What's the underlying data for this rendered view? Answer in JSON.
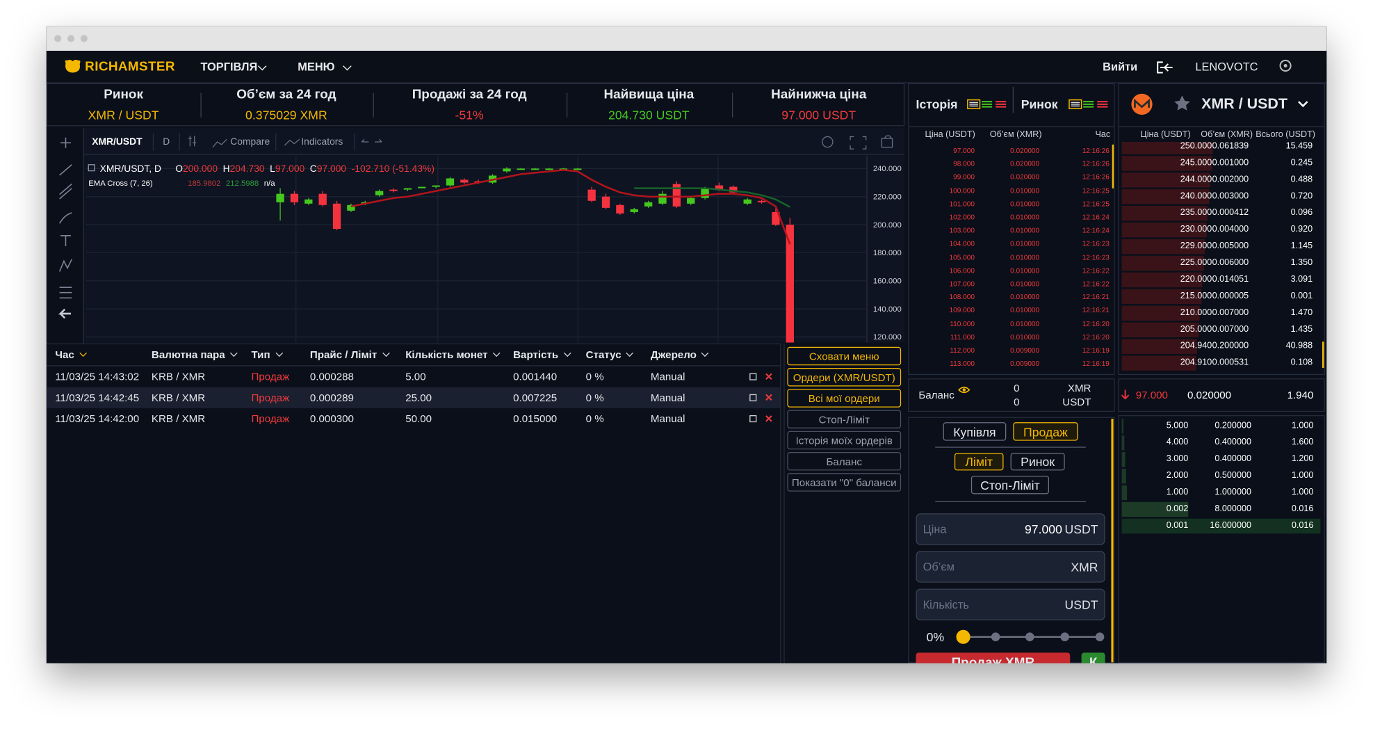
{
  "nav": {
    "logo": "RICHAMSTER",
    "menu": [
      "ТОРГІВЛЯ",
      "МЕНЮ"
    ],
    "logout": "Вийти",
    "user": "LENOVOTC"
  },
  "ticker": [
    {
      "label": "Ринок",
      "value": "XMR / USDT"
    },
    {
      "label": "Об’єм за 24 год",
      "value": "0.375029 XMR"
    },
    {
      "label": "Продажі за 24 год",
      "value": "-51%"
    },
    {
      "label": "Найвища ціна",
      "value": "204.730 USDT"
    },
    {
      "label": "Найнижча ціна",
      "value": "97.000 USDT"
    }
  ],
  "chart_toolbar": {
    "symbol": "XMR/USDT",
    "interval": "D",
    "compare": "Compare",
    "indicators": "Indicators"
  },
  "chart_data": {
    "type": "candlestick",
    "legend": {
      "symbol": "XMR/USDT, D",
      "ohlc": [
        {
          "label": "O",
          "value": "200.000"
        },
        {
          "label": "H",
          "value": "204.730"
        },
        {
          "label": "L",
          "value": "97.000"
        },
        {
          "label": "C",
          "value": "97.000"
        }
      ],
      "change": "-102.710 (-51.43%)",
      "indicator": "EMA Cross (7, 26)",
      "indicator_values": [
        "185.9802",
        "212.5988",
        "n/a"
      ]
    },
    "up_color": "#45c81e",
    "down_color": "#f5333f",
    "ylim": [
      116,
      249
    ],
    "yticks": [
      {
        "value": 240,
        "label": "240.000"
      },
      {
        "value": 220,
        "label": "220.000"
      },
      {
        "value": 200,
        "label": "200.000"
      },
      {
        "value": 180,
        "label": "180.000"
      },
      {
        "value": 160,
        "label": "160.000"
      },
      {
        "value": 140,
        "label": "140.000"
      },
      {
        "value": 120,
        "label": "120.000"
      }
    ],
    "candles": [
      {
        "open": 216,
        "high": 226,
        "low": 203,
        "close": 222
      },
      {
        "open": 222,
        "high": 224,
        "low": 214,
        "close": 216
      },
      {
        "open": 215,
        "high": 219,
        "low": 214,
        "close": 218
      },
      {
        "open": 222,
        "high": 224,
        "low": 213,
        "close": 214
      },
      {
        "open": 215,
        "high": 217,
        "low": 196,
        "close": 197
      },
      {
        "open": 210,
        "high": 215,
        "low": 209,
        "close": 214
      },
      {
        "open": 215,
        "high": 217,
        "low": 214,
        "close": 216
      },
      {
        "open": 221,
        "high": 225,
        "low": 220,
        "close": 224
      },
      {
        "open": 225,
        "high": 226,
        "low": 223,
        "close": 224
      },
      {
        "open": 225,
        "high": 226,
        "low": 224,
        "close": 226
      },
      {
        "open": 226,
        "high": 227,
        "low": 226,
        "close": 227
      },
      {
        "open": 227,
        "high": 228,
        "low": 226,
        "close": 228
      },
      {
        "open": 228,
        "high": 234,
        "low": 227,
        "close": 233
      },
      {
        "open": 232,
        "high": 233,
        "low": 229,
        "close": 230
      },
      {
        "open": 231,
        "high": 232,
        "low": 229,
        "close": 230
      },
      {
        "open": 230,
        "high": 236,
        "low": 229,
        "close": 235
      },
      {
        "open": 238,
        "high": 241,
        "low": 237,
        "close": 240
      },
      {
        "open": 239.5,
        "high": 240.5,
        "low": 239,
        "close": 240
      },
      {
        "open": 239.5,
        "high": 240.5,
        "low": 239,
        "close": 240
      },
      {
        "open": 239.5,
        "high": 240.5,
        "low": 239,
        "close": 240
      },
      {
        "open": 239.5,
        "high": 240.5,
        "low": 239,
        "close": 240
      },
      {
        "open": 239.5,
        "high": 240.5,
        "low": 239,
        "close": 240
      },
      {
        "open": 225,
        "high": 227,
        "low": 216,
        "close": 217
      },
      {
        "open": 220,
        "high": 222,
        "low": 211,
        "close": 212
      },
      {
        "open": 214,
        "high": 215,
        "low": 207,
        "close": 208
      },
      {
        "open": 209,
        "high": 212,
        "low": 208,
        "close": 211
      },
      {
        "open": 213,
        "high": 217,
        "low": 212,
        "close": 216
      },
      {
        "open": 215,
        "high": 224,
        "low": 214,
        "close": 222
      },
      {
        "open": 229,
        "high": 231,
        "low": 212,
        "close": 213
      },
      {
        "open": 215,
        "high": 220,
        "low": 214,
        "close": 219
      },
      {
        "open": 219,
        "high": 227,
        "low": 218,
        "close": 226
      },
      {
        "open": 228,
        "high": 230,
        "low": 224,
        "close": 225
      },
      {
        "open": 227,
        "high": 228,
        "low": 222,
        "close": 223
      },
      {
        "open": 215,
        "high": 219,
        "low": 214,
        "close": 218
      },
      {
        "open": 217,
        "high": 218,
        "low": 215,
        "close": 216
      },
      {
        "open": 209,
        "high": 212,
        "low": 199,
        "close": 200
      },
      {
        "open": 200,
        "high": 204.73,
        "low": 97,
        "close": 97
      }
    ],
    "series": [
      {
        "name": "EMA 7",
        "color": "#b3141c",
        "values": [
          null,
          null,
          null,
          null,
          null,
          213,
          215,
          217,
          219,
          220,
          222,
          224,
          226,
          228,
          230,
          232,
          234,
          236,
          237,
          238,
          239,
          238,
          232,
          227,
          223,
          221,
          220,
          220,
          220,
          220,
          221,
          222,
          222,
          221,
          219,
          213,
          185.9802
        ]
      },
      {
        "name": "EMA 26",
        "color": "#17632a",
        "values": [
          null,
          null,
          null,
          null,
          null,
          null,
          null,
          null,
          null,
          null,
          null,
          null,
          null,
          null,
          null,
          null,
          null,
          null,
          null,
          null,
          null,
          null,
          null,
          null,
          null,
          226,
          226,
          226,
          226,
          226,
          226,
          225,
          224,
          223,
          221,
          218,
          212.5988
        ]
      }
    ]
  },
  "orders": {
    "headers": [
      "Час",
      "Валютна пара",
      "Тип",
      "Прайс / Ліміт",
      "Кількість монет",
      "Вартість",
      "Статус",
      "Джерело"
    ],
    "rows": [
      [
        "11/03/25 14:43:02",
        "KRB / XMR",
        "Продаж",
        "0.000288",
        "5.00",
        "0.001440",
        "0 %",
        "Manual"
      ],
      [
        "11/03/25 14:42:45",
        "KRB / XMR",
        "Продаж",
        "0.000289",
        "25.00",
        "0.007225",
        "0 %",
        "Manual"
      ],
      [
        "11/03/25 14:42:00",
        "KRB / XMR",
        "Продаж",
        "0.000300",
        "50.00",
        "0.015000",
        "0 %",
        "Manual"
      ]
    ]
  },
  "side_buttons": [
    "Сховати меню",
    "Ордери (XMR/USDT)",
    "Всі мої ордери",
    "Стоп-Ліміт",
    "Історія моїх ордерів",
    "Баланс",
    "Показати \"0\" баланси"
  ],
  "history": {
    "title": "Історія",
    "headers": [
      "Ціна (USDT)",
      "Об’єм (XMR)",
      "Час"
    ],
    "rows": [
      [
        "97.000",
        "0.020000",
        "12:16:26"
      ],
      [
        "98.000",
        "0.020000",
        "12:16:26"
      ],
      [
        "99.000",
        "0.020000",
        "12:16:26"
      ],
      [
        "100.000",
        "0.010000",
        "12:16:25"
      ],
      [
        "101.000",
        "0.010000",
        "12:16:25"
      ],
      [
        "102.000",
        "0.010000",
        "12:16:24"
      ],
      [
        "103.000",
        "0.010000",
        "12:16:24"
      ],
      [
        "104.000",
        "0.010000",
        "12:16:23"
      ],
      [
        "105.000",
        "0.010000",
        "12:16:23"
      ],
      [
        "106.000",
        "0.010000",
        "12:16:22"
      ],
      [
        "107.000",
        "0.010000",
        "12:16:22"
      ],
      [
        "108.000",
        "0.010000",
        "12:16:21"
      ],
      [
        "109.000",
        "0.010000",
        "12:16:21"
      ],
      [
        "110.000",
        "0.010000",
        "12:16:20"
      ],
      [
        "111.000",
        "0.010000",
        "12:16:20"
      ],
      [
        "112.000",
        "0.009000",
        "12:16:19"
      ],
      [
        "113.000",
        "0.009000",
        "12:16:19"
      ]
    ]
  },
  "market": {
    "title": "Ринок",
    "pair": "XMR / USDT",
    "headers": [
      "Ціна (USDT)",
      "Об’єм (XMR)",
      "Всього (USDT)"
    ],
    "asks": [
      [
        "250.000",
        "0.061839",
        "15.459"
      ],
      [
        "245.000",
        "0.001000",
        "0.245"
      ],
      [
        "244.000",
        "0.002000",
        "0.488"
      ],
      [
        "240.000",
        "0.003000",
        "0.720"
      ],
      [
        "235.000",
        "0.000412",
        "0.096"
      ],
      [
        "230.000",
        "0.004000",
        "0.920"
      ],
      [
        "229.000",
        "0.005000",
        "1.145"
      ],
      [
        "225.000",
        "0.006000",
        "1.350"
      ],
      [
        "220.000",
        "0.014051",
        "3.091"
      ],
      [
        "215.000",
        "0.000005",
        "0.001"
      ],
      [
        "210.000",
        "0.007000",
        "1.470"
      ],
      [
        "205.000",
        "0.007000",
        "1.435"
      ],
      [
        "204.940",
        "0.200000",
        "40.988"
      ],
      [
        "204.910",
        "0.000531",
        "0.108"
      ]
    ],
    "last": [
      "97.000",
      "0.020000",
      "1.940"
    ],
    "bids": [
      [
        "5.000",
        "0.200000",
        "1.000"
      ],
      [
        "4.000",
        "0.400000",
        "1.600"
      ],
      [
        "3.000",
        "0.400000",
        "1.200"
      ],
      [
        "2.000",
        "0.500000",
        "1.000"
      ],
      [
        "1.000",
        "1.000000",
        "1.000"
      ],
      [
        "0.002",
        "8.000000",
        "0.016"
      ],
      [
        "0.001",
        "16.000000",
        "0.016"
      ]
    ]
  },
  "balance": {
    "label": "Баланс",
    "rows": [
      [
        "0",
        "XMR"
      ],
      [
        "0",
        "USDT"
      ]
    ]
  },
  "form": {
    "sides": [
      "Купівля",
      "Продаж"
    ],
    "types": [
      "Ліміт",
      "Ринок",
      "Стоп-Ліміт"
    ],
    "fields": [
      {
        "label": "Ціна",
        "value": "97.000",
        "unit": "USDT"
      },
      {
        "label": "Об’єм",
        "unit": "XMR"
      },
      {
        "label": "Кількість",
        "unit": "USDT"
      }
    ],
    "percent": "0%",
    "submit": "Продаж XMR",
    "buy_submit": "К"
  }
}
